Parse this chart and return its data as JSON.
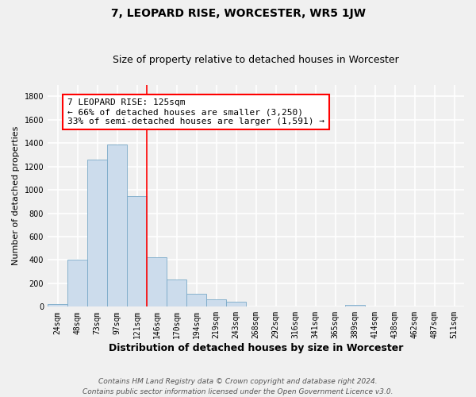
{
  "title": "7, LEOPARD RISE, WORCESTER, WR5 1JW",
  "subtitle": "Size of property relative to detached houses in Worcester",
  "xlabel": "Distribution of detached houses by size in Worcester",
  "ylabel": "Number of detached properties",
  "bar_labels": [
    "24sqm",
    "48sqm",
    "73sqm",
    "97sqm",
    "121sqm",
    "146sqm",
    "170sqm",
    "194sqm",
    "219sqm",
    "243sqm",
    "268sqm",
    "292sqm",
    "316sqm",
    "341sqm",
    "365sqm",
    "389sqm",
    "414sqm",
    "438sqm",
    "462sqm",
    "487sqm",
    "511sqm"
  ],
  "bar_values": [
    25,
    400,
    1260,
    1390,
    950,
    425,
    230,
    110,
    65,
    40,
    5,
    0,
    0,
    0,
    0,
    15,
    0,
    0,
    0,
    0,
    0
  ],
  "bar_color": "#ccdcec",
  "bar_edge_color": "#7aaac8",
  "vline_color": "red",
  "annotation_title": "7 LEOPARD RISE: 125sqm",
  "annotation_line1": "← 66% of detached houses are smaller (3,250)",
  "annotation_line2": "33% of semi-detached houses are larger (1,591) →",
  "annotation_box_facecolor": "white",
  "annotation_box_edgecolor": "red",
  "ylim": [
    0,
    1900
  ],
  "yticks": [
    0,
    200,
    400,
    600,
    800,
    1000,
    1200,
    1400,
    1600,
    1800
  ],
  "footer_line1": "Contains HM Land Registry data © Crown copyright and database right 2024.",
  "footer_line2": "Contains public sector information licensed under the Open Government Licence v3.0.",
  "bg_color": "#f0f0f0",
  "grid_color": "white",
  "title_fontsize": 10,
  "subtitle_fontsize": 9,
  "ylabel_fontsize": 8,
  "xlabel_fontsize": 9,
  "tick_fontsize": 7,
  "annotation_fontsize": 8,
  "footer_fontsize": 6.5
}
